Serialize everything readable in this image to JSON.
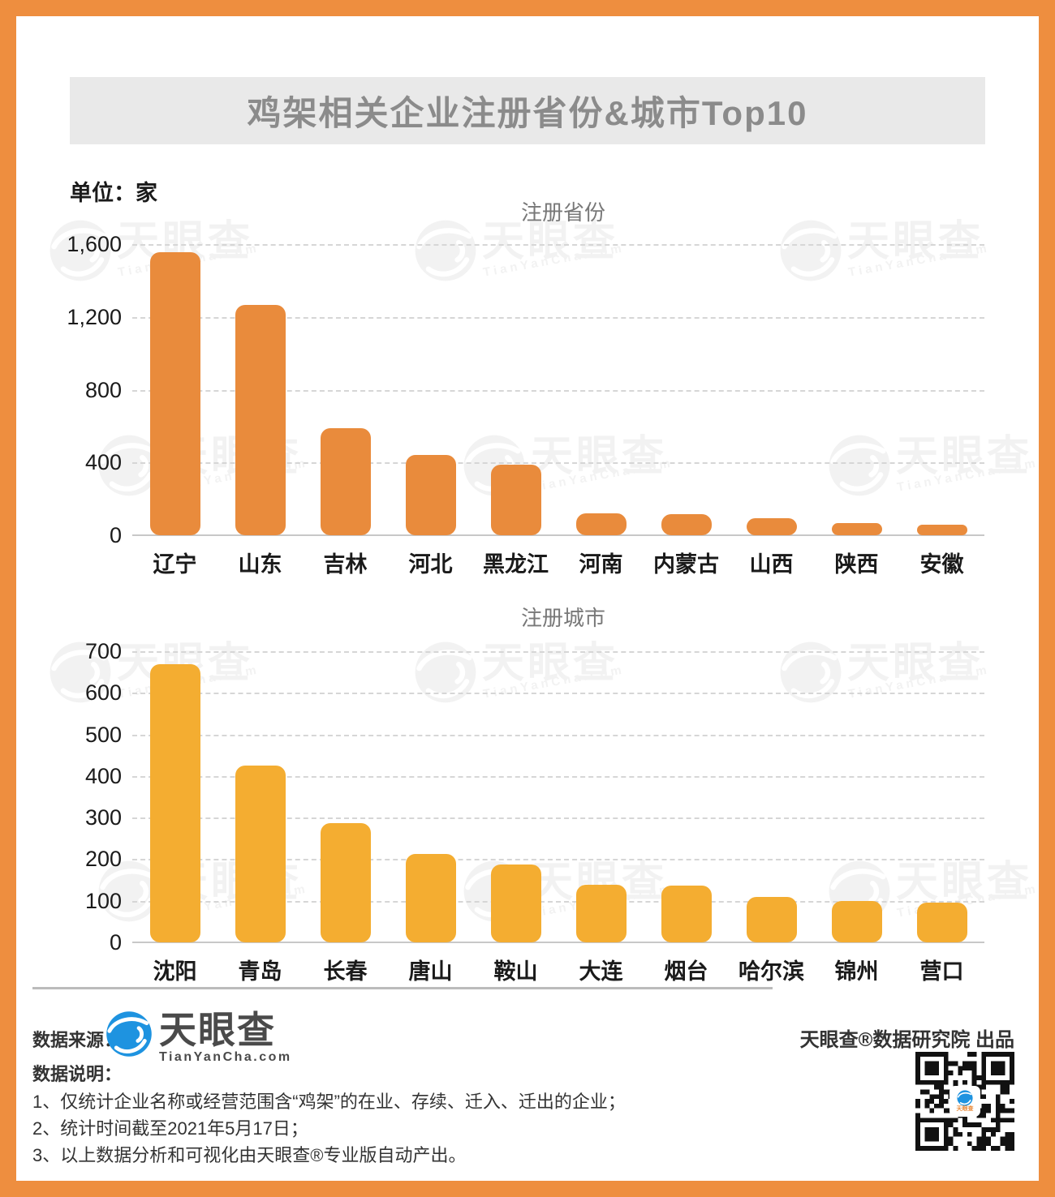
{
  "header": {
    "title": "鸡架相关企业注册省份&城市Top10"
  },
  "unit_label": "单位：家",
  "watermark": {
    "brand": "天眼查",
    "domain": "TianYanCha.com"
  },
  "colors": {
    "frame": "#EE8E3F",
    "province_bar": "#E98B3C",
    "city_bar": "#F4AD31",
    "logo_blue": "#1E93E0"
  },
  "chart_data": [
    {
      "type": "bar",
      "title": "注册省份",
      "categories": [
        "辽宁",
        "山东",
        "吉林",
        "河北",
        "黑龙江",
        "河南",
        "内蒙古",
        "山西",
        "陕西",
        "安徽"
      ],
      "values": [
        1555,
        1265,
        590,
        440,
        390,
        122,
        118,
        92,
        68,
        57
      ],
      "bar_color": "#E98B3C",
      "xlabel": "",
      "ylabel": "家",
      "ylim": [
        0,
        1600
      ],
      "grid": true,
      "legend": "none",
      "yticks": [
        {
          "value": 1600,
          "label": "1,600"
        },
        {
          "value": 1200,
          "label": "1,200"
        },
        {
          "value": 800,
          "label": "800"
        },
        {
          "value": 400,
          "label": "400"
        },
        {
          "value": 0,
          "label": "0"
        }
      ]
    },
    {
      "type": "bar",
      "title": "注册城市",
      "categories": [
        "沈阳",
        "青岛",
        "长春",
        "唐山",
        "鞍山",
        "大连",
        "烟台",
        "哈尔滨",
        "锦州",
        "营口"
      ],
      "values": [
        668,
        425,
        286,
        212,
        187,
        138,
        136,
        110,
        100,
        96
      ],
      "bar_color": "#F4AD31",
      "xlabel": "",
      "ylabel": "家",
      "ylim": [
        0,
        700
      ],
      "grid": true,
      "legend": "none",
      "yticks": [
        {
          "value": 700,
          "label": "700"
        },
        {
          "value": 600,
          "label": "600"
        },
        {
          "value": 500,
          "label": "500"
        },
        {
          "value": 400,
          "label": "400"
        },
        {
          "value": 300,
          "label": "300"
        },
        {
          "value": 200,
          "label": "200"
        },
        {
          "value": 100,
          "label": "100"
        },
        {
          "value": 0,
          "label": "0"
        }
      ]
    }
  ],
  "footer": {
    "source_label": "数据来源：",
    "logo": {
      "brand": "天眼查",
      "domain": "TianYanCha.com"
    },
    "producer": "天眼查®数据研究院 出品",
    "notes_label": "数据说明：",
    "notes": [
      "1、仅统计企业名称或经营范围含“鸡架”的在业、存续、迁入、迁出的企业；",
      "2、统计时间截至2021年5月17日；",
      "3、以上数据分析和可视化由天眼查®专业版自动产出。"
    ]
  }
}
